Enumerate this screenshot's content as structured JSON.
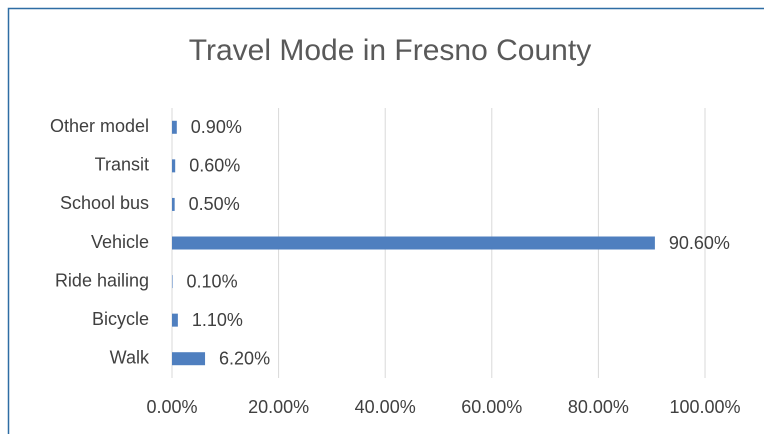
{
  "chart_data": {
    "type": "hbar",
    "title": "Travel Mode in Fresno County",
    "categories": [
      "Other model",
      "Transit",
      "School bus",
      "Vehicle",
      "Ride hailing",
      "Bicycle",
      "Walk"
    ],
    "values": [
      0.9,
      0.6,
      0.5,
      90.6,
      0.1,
      1.1,
      6.2
    ],
    "value_labels": [
      "0.90%",
      "0.60%",
      "0.50%",
      "90.60%",
      "0.10%",
      "1.10%",
      "6.20%"
    ],
    "color": "#4f7fbf",
    "xlim": [
      0,
      100
    ],
    "xticks": [
      {
        "value": 0,
        "label": "0.00%"
      },
      {
        "value": 20,
        "label": "20.00%"
      },
      {
        "value": 40,
        "label": "40.00%"
      },
      {
        "value": 60,
        "label": "60.00%"
      },
      {
        "value": 80,
        "label": "80.00%"
      },
      {
        "value": 100,
        "label": "100.00%"
      }
    ],
    "grid": true
  }
}
